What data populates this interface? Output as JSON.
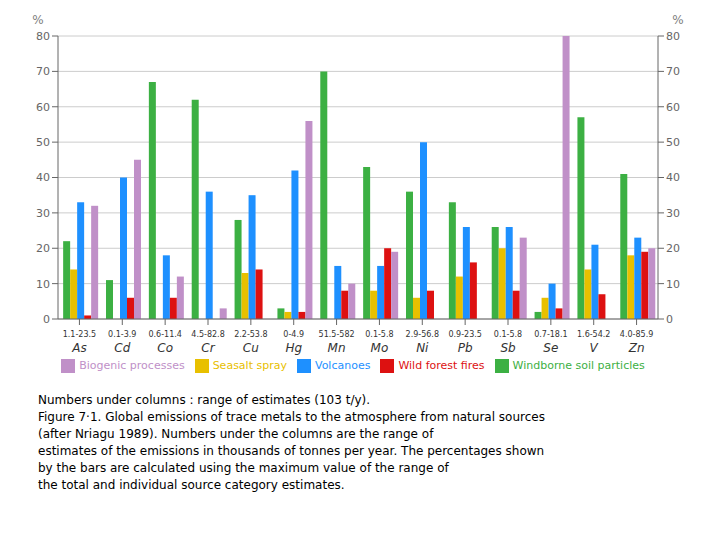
{
  "chart_data": {
    "type": "bar",
    "categories": [
      "As",
      "Cd",
      "Co",
      "Cr",
      "Cu",
      "Hg",
      "Mn",
      "Mo",
      "Ni",
      "Pb",
      "Sb",
      "Se",
      "V",
      "Zn"
    ],
    "range_labels": [
      "1.1-23.5",
      "0.1-3.9",
      "0.6-11.4",
      "4.5-82.8",
      "2.2-53.8",
      "0-4.9",
      "51.5-582",
      "0.1-5.8",
      "2.9-56.8",
      "0.9-23.5",
      "0.1-5.8",
      "0.7-18.1",
      "1.6-54.2",
      "4.0-85.9"
    ],
    "series": [
      {
        "name": "Windborne soil particles",
        "color": "#3cb043",
        "values": [
          22,
          11,
          67,
          62,
          28,
          3,
          70,
          43,
          36,
          33,
          26,
          2,
          57,
          41
        ]
      },
      {
        "name": "Seasalt spray",
        "color": "#e8c000",
        "values": [
          14,
          0,
          0,
          0,
          13,
          2,
          0,
          8,
          6,
          12,
          20,
          6,
          14,
          18
        ]
      },
      {
        "name": "Volcanoes",
        "color": "#1e90ff",
        "values": [
          33,
          40,
          18,
          36,
          35,
          42,
          15,
          15,
          50,
          26,
          26,
          10,
          21,
          23
        ]
      },
      {
        "name": "Wild forest fires",
        "color": "#dd1111",
        "values": [
          1,
          6,
          6,
          0,
          14,
          2,
          8,
          20,
          8,
          16,
          8,
          3,
          7,
          19
        ]
      },
      {
        "name": "Biogenic processes",
        "color": "#c090c8",
        "values": [
          32,
          45,
          12,
          3,
          0,
          56,
          10,
          19,
          0,
          0,
          23,
          80,
          0,
          20
        ]
      }
    ],
    "ylabel": "%",
    "y2label": "%",
    "ylim": [
      0,
      80
    ],
    "yticks": [
      0,
      10,
      20,
      30,
      40,
      50,
      60,
      70,
      80
    ],
    "y2lim": [
      0,
      80
    ],
    "y2ticks": [
      0,
      10,
      20,
      30,
      40,
      50,
      60,
      70,
      80
    ],
    "grid": true,
    "legend": "bottom",
    "caption_lines": [
      "Numbers under columns : range of estimates (103 t/y).",
      "Figure 7·1. Global emissions of trace metals to the atmosphere from natural sources",
      "(after Nriagu 1989). Numbers under the columns are the range of",
      "estimates of the emissions in thousands of tonnes per year. The percentages shown",
      "by the bars are calculated using the maximum value of the range of",
      "the total and individual source category estimates."
    ]
  }
}
